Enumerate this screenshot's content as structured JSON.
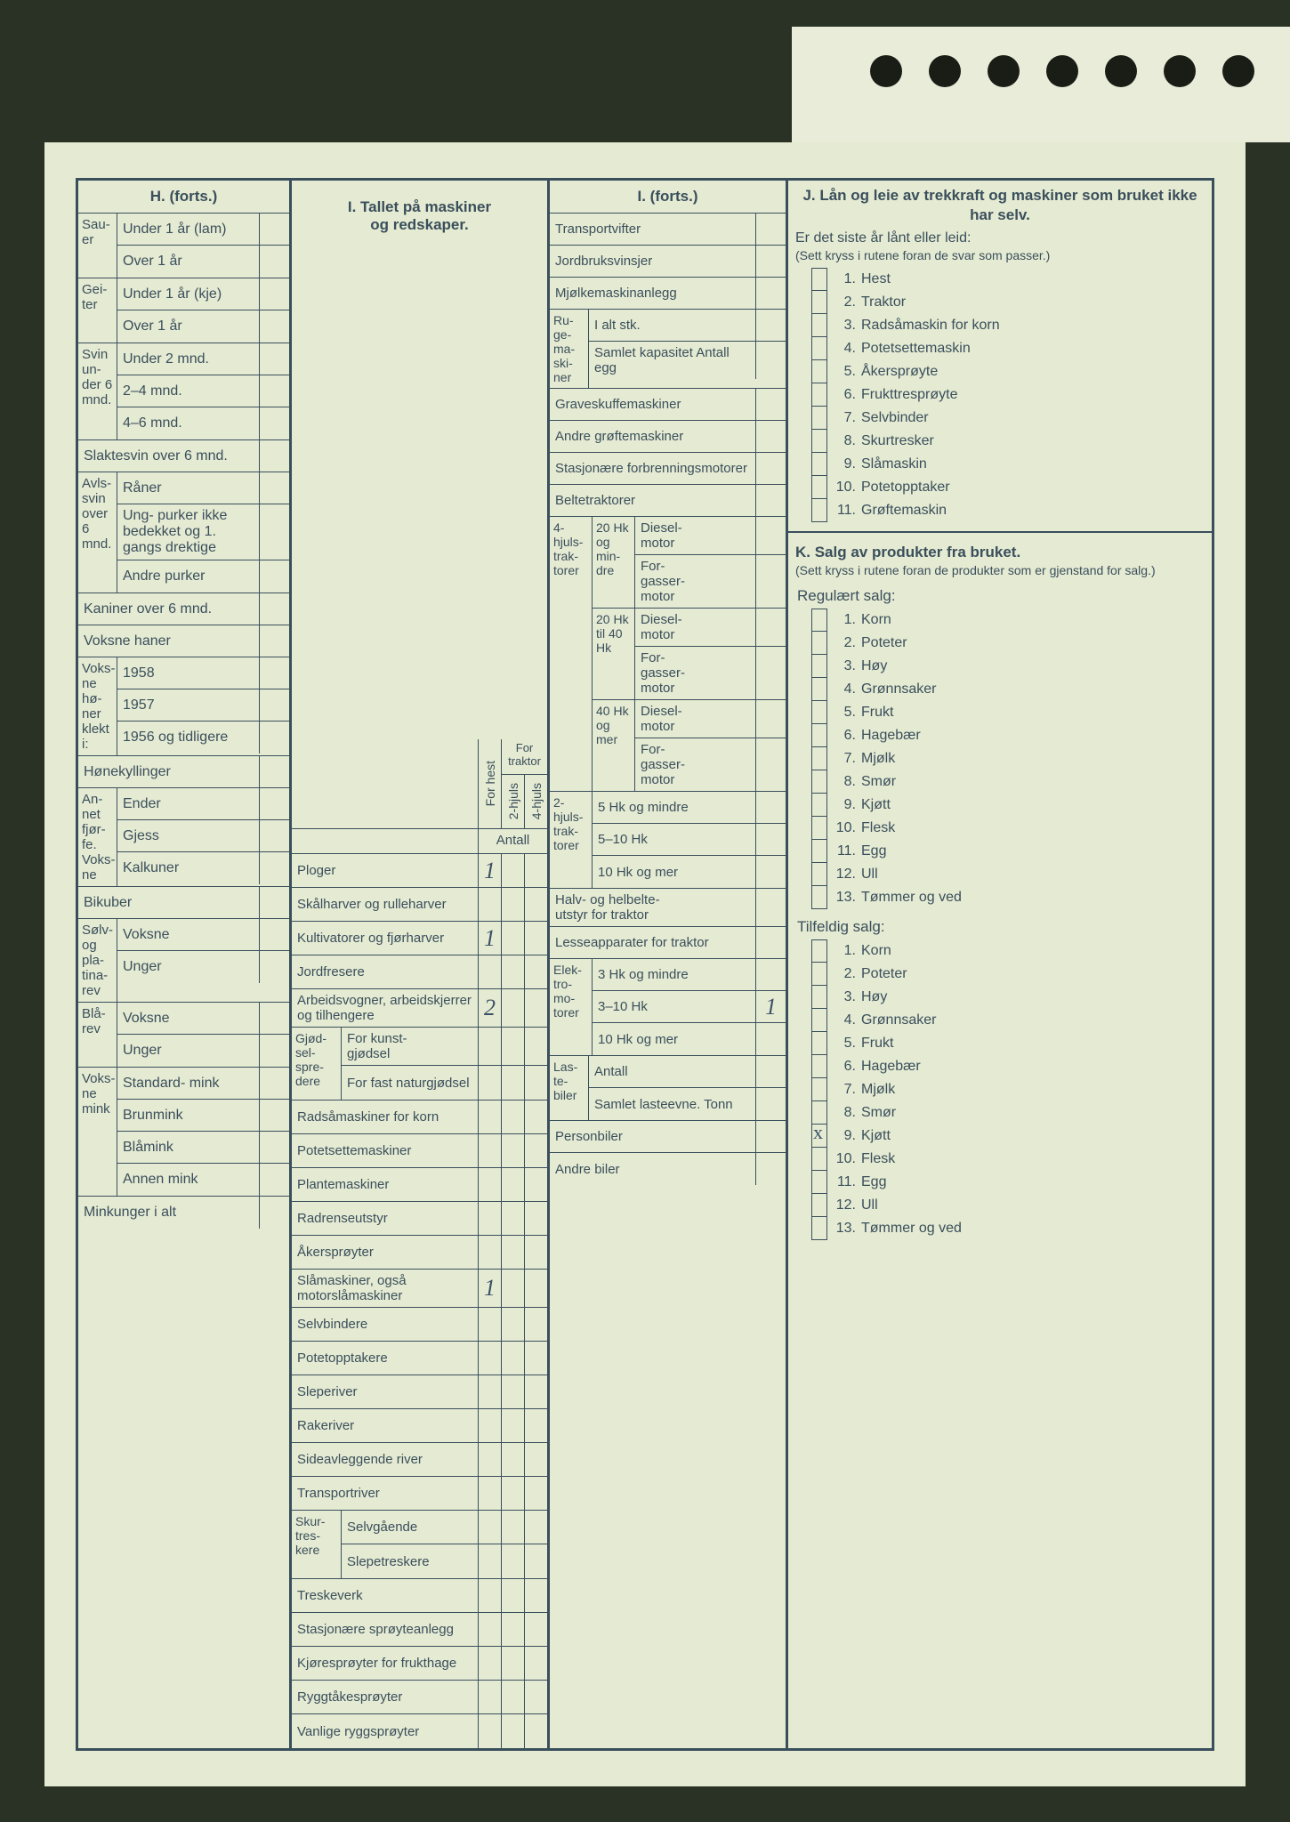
{
  "H": {
    "title": "H. (forts.)",
    "groups": [
      {
        "side": "Sau-\ner",
        "rows": [
          {
            "l": "Under 1 år (lam)"
          },
          {
            "l": "Over 1 år"
          }
        ]
      },
      {
        "side": "Gei-\nter",
        "rows": [
          {
            "l": "Under 1 år (kje)"
          },
          {
            "l": "Over 1 år"
          }
        ]
      },
      {
        "side": "Svin un-\nder 6 mnd.",
        "rows": [
          {
            "l": "Under 2 mnd."
          },
          {
            "l": "2–4 mnd."
          },
          {
            "l": "4–6 mnd."
          }
        ]
      }
    ],
    "flat1": [
      {
        "l": "Slaktesvin over 6 mnd."
      }
    ],
    "avls": {
      "side": "Avls-\nsvin\nover\n6\nmnd.",
      "rows": [
        {
          "l": "Råner"
        },
        {
          "l": "Ung-\npurker ikke bedekket og 1. gangs drektige"
        },
        {
          "l": "Andre purker"
        }
      ]
    },
    "flat2": [
      {
        "l": "Kaniner over 6 mnd."
      },
      {
        "l": "Voksne haner"
      }
    ],
    "honer": {
      "side": "Voks-\nne\nhø-\nner\nklekt\ni:",
      "rows": [
        {
          "l": "1958"
        },
        {
          "l": "1957"
        },
        {
          "l": "1956 og tidligere"
        }
      ]
    },
    "flat3": [
      {
        "l": "Hønekyllinger"
      }
    ],
    "fjor": {
      "side": "An-\nnet\nfjør-\nfe.\nVoks-\nne",
      "rows": [
        {
          "l": "Ender"
        },
        {
          "l": "Gjess"
        },
        {
          "l": "Kalkuner"
        }
      ]
    },
    "flat4": [
      {
        "l": "Bikuber"
      }
    ],
    "solv": {
      "side": "Sølv-\nog\npla-\ntina-\nrev",
      "rows": [
        {
          "l": "Voksne"
        },
        {
          "l": "Unger"
        }
      ]
    },
    "bla": {
      "side": "Blå-\nrev",
      "rows": [
        {
          "l": "Voksne"
        },
        {
          "l": "Unger"
        }
      ]
    },
    "mink": {
      "side": "Voks-\nne\nmink",
      "rows": [
        {
          "l": "Standard-\nmink"
        },
        {
          "l": "Brunmink"
        },
        {
          "l": "Blåmink"
        },
        {
          "l": "Annen mink"
        }
      ]
    },
    "flat5": [
      {
        "l": "Minkunger i alt"
      }
    ]
  },
  "I1": {
    "title_b": "I. Tallet på maskiner",
    "title_2": "og redskaper.",
    "c1": "For hest",
    "c2_top": "For traktor",
    "c2": "2-hjuls",
    "c3": "4-hjuls",
    "antall": "Antall",
    "rows": [
      {
        "l": "Ploger",
        "v1": "1"
      },
      {
        "l": "Skålharver og rulleharver"
      },
      {
        "l": "Kultivatorer og fjørharver",
        "v1": "1"
      },
      {
        "l": "Jordfresere"
      },
      {
        "l": "Arbeidsvogner, arbeidskjerrer og tilhengere",
        "v1": "2"
      }
    ],
    "gjod": {
      "side": "Gjød-\nsel-\nspre-\ndere",
      "rows": [
        {
          "l": "For kunst-\ngjødsel"
        },
        {
          "l": "For fast naturgjødsel"
        }
      ]
    },
    "rows2": [
      {
        "l": "Radsåmaskiner for korn"
      },
      {
        "l": "Potetsettemaskiner"
      },
      {
        "l": "Plantemaskiner"
      },
      {
        "l": "Radrenseutstyr"
      },
      {
        "l": "Åkersprøyter"
      },
      {
        "l": "Slåmaskiner, også motorslåmaskiner",
        "v1": "1"
      },
      {
        "l": "Selvbindere"
      },
      {
        "l": "Potetopptakere"
      },
      {
        "l": "Sleperiver"
      },
      {
        "l": "Rakeriver"
      },
      {
        "l": "Sideavleggende river"
      },
      {
        "l": "Transportriver"
      }
    ],
    "skur": {
      "side": "Skur-\ntres-\nkere",
      "rows": [
        {
          "l": "Selvgående"
        },
        {
          "l": "Slepetreskere"
        }
      ]
    },
    "rows3": [
      {
        "l": "Treskeverk"
      },
      {
        "l": "Stasjonære sprøyteanlegg"
      },
      {
        "l": "Kjøresprøyter for frukthage"
      },
      {
        "l": "Ryggtåkesprøyter"
      },
      {
        "l": "Vanlige ryggsprøyter"
      }
    ]
  },
  "I2": {
    "title": "I. (forts.)",
    "rows1": [
      {
        "l": "Transportvifter"
      },
      {
        "l": "Jordbruksvinsjer"
      },
      {
        "l": "Mjølkemaskinanlegg"
      }
    ],
    "ruge": {
      "side": "Ru-\nge-\nma-\nski-\nner",
      "rows": [
        {
          "l": "I alt stk."
        },
        {
          "l": "Samlet kapasitet Antall egg"
        }
      ]
    },
    "rows2": [
      {
        "l": "Graveskuffemaskiner"
      },
      {
        "l": "Andre grøftemaskiner"
      },
      {
        "l": "Stasjonære forbrenningsmotorer"
      },
      {
        "l": "Beltetraktorer"
      }
    ],
    "trak4": {
      "side": "4-\nhjuls-\ntrak-\ntorer",
      "subs": [
        {
          "side": "20 Hk og min-\ndre",
          "rows": [
            {
              "l": "Diesel-\nmotor"
            },
            {
              "l": "For-\ngasser-\nmotor"
            }
          ]
        },
        {
          "side": "20 Hk til 40 Hk",
          "rows": [
            {
              "l": "Diesel-\nmotor"
            },
            {
              "l": "For-\ngasser-\nmotor"
            }
          ]
        },
        {
          "side": "40 Hk og mer",
          "rows": [
            {
              "l": "Diesel-\nmotor"
            },
            {
              "l": "For-\ngasser-\nmotor"
            }
          ]
        }
      ]
    },
    "trak2": {
      "side": "2-\nhjuls-\ntrak-\ntorer",
      "rows": [
        {
          "l": "5 Hk og mindre"
        },
        {
          "l": "5–10 Hk"
        },
        {
          "l": "10 Hk og mer"
        }
      ]
    },
    "rows3": [
      {
        "l": "Halv- og helbelte-\nutstyr for traktor"
      },
      {
        "l": "Lesseapparater for traktor"
      }
    ],
    "elek": {
      "side": "Elek-\ntro-\nmo-\ntorer",
      "rows": [
        {
          "l": "3 Hk og mindre"
        },
        {
          "l": "3–10 Hk",
          "v": "1"
        },
        {
          "l": "10 Hk og mer"
        }
      ]
    },
    "laste": {
      "side": "Las-\nte-\nbiler",
      "rows": [
        {
          "l": "Antall"
        },
        {
          "l": "Samlet lasteevne. Tonn"
        }
      ]
    },
    "rows4": [
      {
        "l": "Personbiler"
      },
      {
        "l": "Andre biler"
      }
    ]
  },
  "J": {
    "title": "J. Lån og leie av trekkraft og maskiner som bruket ikke har selv.",
    "q": "Er det siste år lånt eller leid:",
    "sub": "(Sett kryss i rutene foran de svar som passer.)",
    "items": [
      "Hest",
      "Traktor",
      "Radsåmaskin for korn",
      "Potetsettemaskin",
      "Åkersprøyte",
      "Frukttresprøyte",
      "Selvbinder",
      "Skurtresker",
      "Slåmaskin",
      "Potetopptaker",
      "Grøftemaskin"
    ]
  },
  "K": {
    "title": "K. Salg av produkter fra bruket.",
    "sub": "(Sett kryss i rutene foran de produkter som er gjenstand for salg.)",
    "h1": "Regulært salg:",
    "items1": [
      "Korn",
      "Poteter",
      "Høy",
      "Grønnsaker",
      "Frukt",
      "Hagebær",
      "Mjølk",
      "Smør",
      "Kjøtt",
      "Flesk",
      "Egg",
      "Ull",
      "Tømmer og ved"
    ],
    "h2": "Tilfeldig salg:",
    "items2": [
      "Korn",
      "Poteter",
      "Høy",
      "Grønnsaker",
      "Frukt",
      "Hagebær",
      "Mjølk",
      "Smør",
      "Kjøtt",
      "Flesk",
      "Egg",
      "Ull",
      "Tømmer og ved"
    ],
    "checked2": [
      8
    ]
  }
}
